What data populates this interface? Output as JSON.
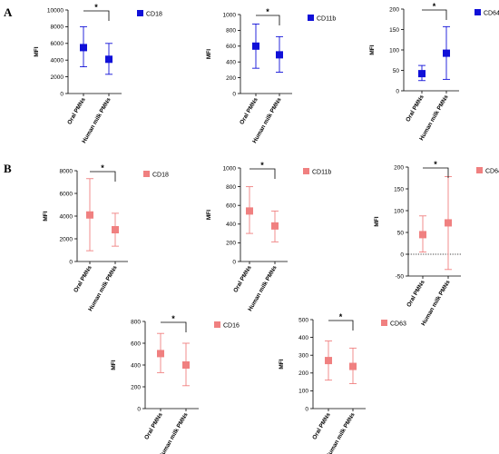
{
  "panel_labels": {
    "a": "A",
    "b": "B"
  },
  "chart_data": [
    {
      "type": "scatter",
      "panel": "A",
      "legend": "CD18",
      "color": "#1010d8",
      "marker": "square",
      "ylabel": "MFI",
      "categories": [
        "Oral PMNs",
        "Human milk PMNs"
      ],
      "ylim": [
        0,
        10000
      ],
      "yticks": [
        0,
        2000,
        4000,
        6000,
        8000,
        10000
      ],
      "values": [
        5500,
        4100
      ],
      "error_low": [
        3200,
        2300
      ],
      "error_high": [
        8000,
        6000
      ],
      "significance": "*"
    },
    {
      "type": "scatter",
      "panel": "A",
      "legend": "CD11b",
      "color": "#1010d8",
      "marker": "square",
      "ylabel": "MFI",
      "categories": [
        "Oral PMNs",
        "Human milk PMNs"
      ],
      "ylim": [
        0,
        1000
      ],
      "yticks": [
        0,
        200,
        400,
        600,
        800,
        1000
      ],
      "values": [
        600,
        490
      ],
      "error_low": [
        320,
        270
      ],
      "error_high": [
        880,
        720
      ],
      "significance": "*"
    },
    {
      "type": "scatter",
      "panel": "A",
      "legend": "CD64",
      "color": "#1010d8",
      "marker": "square",
      "ylabel": "MFI",
      "categories": [
        "Oral PMNs",
        "Human milk PMNs"
      ],
      "ylim": [
        0,
        200
      ],
      "yticks": [
        0,
        50,
        100,
        150,
        200
      ],
      "values": [
        42,
        92
      ],
      "error_low": [
        25,
        28
      ],
      "error_high": [
        62,
        157
      ],
      "significance": "*"
    },
    {
      "type": "scatter",
      "panel": "B",
      "legend": "CD18",
      "color": "#f08080",
      "marker": "square",
      "ylabel": "MFI",
      "categories": [
        "Oral PMNs",
        "Human milk PMNs"
      ],
      "ylim": [
        0,
        8000
      ],
      "yticks": [
        0,
        2000,
        4000,
        6000,
        8000
      ],
      "values": [
        4100,
        2800
      ],
      "error_low": [
        950,
        1350
      ],
      "error_high": [
        7300,
        4250
      ],
      "significance": "*"
    },
    {
      "type": "scatter",
      "panel": "B",
      "legend": "CD11b",
      "color": "#f08080",
      "marker": "square",
      "ylabel": "MFI",
      "categories": [
        "Oral PMNs",
        "Human milk PMNs"
      ],
      "ylim": [
        0,
        1000
      ],
      "yticks": [
        0,
        200,
        400,
        600,
        800,
        1000
      ],
      "values": [
        540,
        380
      ],
      "error_low": [
        300,
        210
      ],
      "error_high": [
        800,
        540
      ],
      "significance": "*"
    },
    {
      "type": "scatter",
      "panel": "B",
      "legend": "CD64",
      "color": "#f08080",
      "marker": "square",
      "ylabel": "MFI",
      "categories": [
        "Oral PMNs",
        "Human milk PMNs"
      ],
      "ylim": [
        -50,
        200
      ],
      "yticks": [
        -50,
        0,
        50,
        100,
        150,
        200
      ],
      "values": [
        45,
        72
      ],
      "error_low": [
        5,
        -35
      ],
      "error_high": [
        88,
        178
      ],
      "zero_line": "dotted",
      "significance": "*"
    },
    {
      "type": "scatter",
      "panel": "B",
      "legend": "CD16",
      "color": "#f08080",
      "marker": "square",
      "ylabel": "MFI",
      "categories": [
        "Oral PMNs",
        "Human milk PMNs"
      ],
      "ylim": [
        0,
        800
      ],
      "yticks": [
        0,
        200,
        400,
        600,
        800
      ],
      "values": [
        505,
        400
      ],
      "error_low": [
        330,
        210
      ],
      "error_high": [
        690,
        600
      ],
      "significance": "*"
    },
    {
      "type": "scatter",
      "panel": "B",
      "legend": "CD63",
      "color": "#f08080",
      "marker": "square",
      "ylabel": "MFI",
      "categories": [
        "Oral PMNs",
        "Human milk PMNs"
      ],
      "ylim": [
        0,
        500
      ],
      "yticks": [
        0,
        100,
        200,
        300,
        400,
        500
      ],
      "values": [
        270,
        237
      ],
      "error_low": [
        160,
        140
      ],
      "error_high": [
        380,
        340
      ],
      "significance": "*"
    }
  ]
}
